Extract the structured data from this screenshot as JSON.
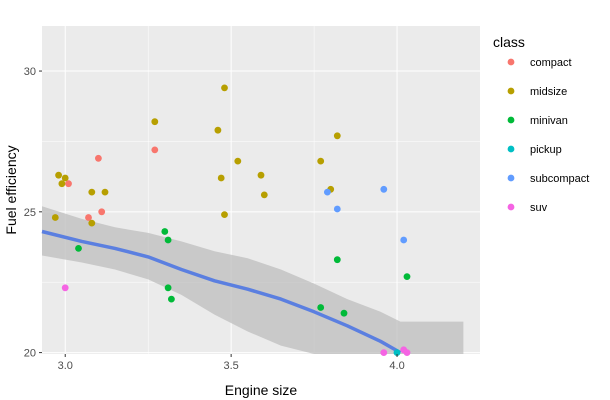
{
  "chart_data": {
    "type": "scatter",
    "xlabel": "Engine size",
    "ylabel": "Fuel efficiency",
    "xlim": [
      2.93,
      4.25
    ],
    "ylim": [
      19.95,
      31.6
    ],
    "xticks": [
      3.0,
      3.5,
      4.0
    ],
    "xtick_labels": [
      "3.0",
      "3.5",
      "4.0"
    ],
    "yticks": [
      20,
      25,
      30
    ],
    "ytick_labels": [
      "20",
      "25",
      "30"
    ],
    "grid": true,
    "legend": {
      "title": "class",
      "placement": "right",
      "entries": [
        "compact",
        "midsize",
        "minivan",
        "pickup",
        "subcompact",
        "suv"
      ]
    },
    "colors": {
      "compact": "#F8766D",
      "midsize": "#B79F00",
      "minivan": "#00BA38",
      "pickup": "#00BFC4",
      "subcompact": "#619CFF",
      "suv": "#F564E3",
      "panel": "#EBEBEB",
      "grid": "#FFFFFF",
      "ribbon": "#BDBDBD",
      "smooth": "#5B7FE0"
    },
    "series": [
      {
        "name": "compact",
        "points": [
          [
            3.01,
            26.0
          ],
          [
            3.1,
            26.9
          ],
          [
            3.07,
            24.8
          ],
          [
            3.11,
            25.0
          ],
          [
            3.27,
            27.2
          ]
        ]
      },
      {
        "name": "midsize",
        "points": [
          [
            2.97,
            24.8
          ],
          [
            2.98,
            26.3
          ],
          [
            2.99,
            26.0
          ],
          [
            3.0,
            26.2
          ],
          [
            3.08,
            25.7
          ],
          [
            3.08,
            24.6
          ],
          [
            3.12,
            25.7
          ],
          [
            3.27,
            28.2
          ],
          [
            3.46,
            27.9
          ],
          [
            3.47,
            26.2
          ],
          [
            3.48,
            29.4
          ],
          [
            3.48,
            24.9
          ],
          [
            3.52,
            26.8
          ],
          [
            3.59,
            26.3
          ],
          [
            3.6,
            25.6
          ],
          [
            3.77,
            26.8
          ],
          [
            3.8,
            25.8
          ],
          [
            3.82,
            27.7
          ]
        ]
      },
      {
        "name": "minivan",
        "points": [
          [
            3.04,
            23.7
          ],
          [
            3.3,
            24.3
          ],
          [
            3.31,
            24.0
          ],
          [
            3.31,
            22.3
          ],
          [
            3.32,
            21.9
          ],
          [
            3.77,
            21.6
          ],
          [
            3.82,
            23.3
          ],
          [
            3.84,
            21.4
          ],
          [
            4.03,
            22.7
          ]
        ]
      },
      {
        "name": "pickup",
        "points": [
          [
            4.0,
            20.0
          ]
        ]
      },
      {
        "name": "subcompact",
        "points": [
          [
            3.79,
            25.7
          ],
          [
            3.82,
            25.1
          ],
          [
            3.96,
            25.8
          ],
          [
            4.02,
            24.0
          ]
        ]
      },
      {
        "name": "suv",
        "points": [
          [
            3.0,
            22.3
          ],
          [
            3.96,
            20.0
          ],
          [
            4.02,
            20.1
          ],
          [
            4.03,
            20.0
          ]
        ]
      }
    ],
    "smooth": {
      "x": [
        2.93,
        3.05,
        3.15,
        3.25,
        3.35,
        3.45,
        3.55,
        3.65,
        3.75,
        3.85,
        3.95,
        4.01
      ],
      "y": [
        24.3,
        23.95,
        23.7,
        23.4,
        22.95,
        22.55,
        22.25,
        21.9,
        21.45,
        20.95,
        20.4,
        20.0
      ],
      "lower": [
        23.45,
        23.2,
        22.95,
        22.6,
        22.05,
        21.35,
        20.75,
        20.25,
        19.95,
        19.95,
        19.95,
        19.95
      ],
      "upper": [
        25.2,
        24.75,
        24.45,
        24.25,
        23.95,
        23.6,
        23.35,
        22.95,
        22.45,
        21.9,
        21.45,
        21.1
      ],
      "ribbon_x_end": 4.2
    }
  }
}
